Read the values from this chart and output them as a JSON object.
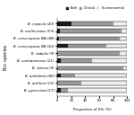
{
  "species": [
    "B. cepacia (20)",
    "B. multivorans (53)",
    "B. cenocepacia IIIA (44)",
    "B. cenocepacia IIIB (61)",
    "B. stabilis (9)",
    "B. vietnamiensis (21)",
    "B. dolosa (9)",
    "B. ambifaria (40)",
    "B. anthina (13)",
    "B. pyrrocinia (17)"
  ],
  "both": [
    20,
    4,
    2,
    15,
    0,
    5,
    0,
    5,
    0,
    5
  ],
  "clinical": [
    60,
    88,
    88,
    55,
    90,
    45,
    95,
    20,
    35,
    10
  ],
  "environmental": [
    20,
    8,
    10,
    30,
    10,
    50,
    5,
    75,
    65,
    85
  ],
  "colors": {
    "both": "#1a1a1a",
    "clinical": "#999999",
    "environmental": "#f0f0f0"
  },
  "xlabel": "Proportion of STs (%)",
  "ylabel": "Bcc species",
  "legend_labels": [
    "Both",
    "Clinical",
    "Environmental"
  ],
  "xlim": [
    0,
    100
  ]
}
